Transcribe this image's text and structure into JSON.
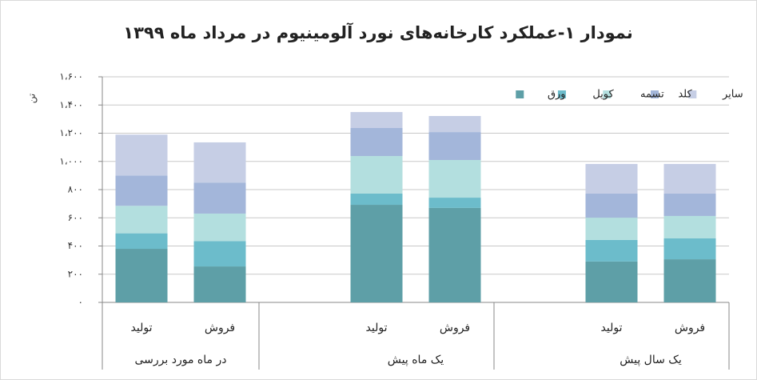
{
  "chart_data": {
    "type": "stacked-bar",
    "title": "نمودار ۱-عملکرد کارخانه‌های نورد آلومینیوم در مرداد ماه ۱۳۹۹",
    "y_label": "تن",
    "categories": [
      "تولید",
      "فروش",
      null,
      "تولید",
      "فروش",
      null,
      "تولید",
      "فروش"
    ],
    "groups": [
      "در ماه مورد بررسی",
      "یک ماه پیش",
      "یک سال پیش"
    ],
    "series": [
      {
        "name": "ورق",
        "color": "#5e9fa7",
        "values": [
          380,
          255,
          null,
          692,
          670,
          null,
          290,
          306
        ]
      },
      {
        "name": "کویل",
        "color": "#6cbccb",
        "values": [
          110,
          180,
          null,
          80,
          73,
          null,
          153,
          148
        ]
      },
      {
        "name": "تسمه",
        "color": "#b3dfdf",
        "values": [
          195,
          195,
          null,
          266,
          267,
          null,
          158,
          159
        ]
      },
      {
        "name": "کلد",
        "color": "#a3b6da",
        "values": [
          215,
          220,
          null,
          199,
          198,
          null,
          171,
          159
        ]
      },
      {
        "name": "سایر",
        "color": "#c6cee5",
        "values": [
          290,
          285,
          null,
          113,
          114,
          null,
          210,
          210
        ]
      }
    ],
    "ylim": [
      0,
      1600
    ],
    "yticks": [
      {
        "value": 0,
        "label": "۰"
      },
      {
        "value": 200,
        "label": "۲۰۰"
      },
      {
        "value": 400,
        "label": "۴۰۰"
      },
      {
        "value": 600,
        "label": "۶۰۰"
      },
      {
        "value": 800,
        "label": "۸۰۰"
      },
      {
        "value": 1000,
        "label": "۱،۰۰۰"
      },
      {
        "value": 1200,
        "label": "۱،۲۰۰"
      },
      {
        "value": 1400,
        "label": "۱،۴۰۰"
      },
      {
        "value": 1600,
        "label": "۱،۶۰۰"
      }
    ],
    "grid": true,
    "legend": "top-right"
  }
}
